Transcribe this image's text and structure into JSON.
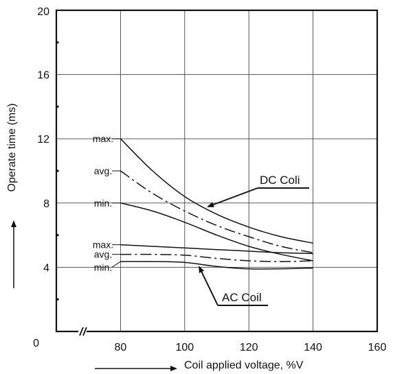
{
  "chart_data": {
    "type": "line",
    "xlabel": "Coil applied voltage, %V",
    "ylabel": "Operate time (ms)",
    "x_ticks": [
      "80",
      "100",
      "120",
      "140",
      "160"
    ],
    "y_ticks": [
      "0",
      "4",
      "8",
      "12",
      "16",
      "20"
    ],
    "xlim": [
      60,
      160
    ],
    "ylim": [
      0,
      20
    ],
    "grid": true,
    "x_axis_break": true,
    "x": [
      80,
      90,
      100,
      110,
      120,
      130,
      140
    ],
    "series": [
      {
        "group": "DC",
        "label": "max.",
        "style": "solid",
        "values": [
          12.0,
          10.0,
          8.4,
          7.3,
          6.5,
          5.9,
          5.5
        ]
      },
      {
        "group": "DC",
        "label": "avg.",
        "style": "dashdot",
        "values": [
          10.0,
          8.6,
          7.5,
          6.6,
          5.9,
          5.3,
          4.9
        ]
      },
      {
        "group": "DC",
        "label": "min.",
        "style": "solid",
        "values": [
          8.0,
          7.5,
          6.8,
          6.0,
          5.3,
          4.8,
          4.4
        ]
      },
      {
        "group": "AC",
        "label": "max.",
        "style": "solid",
        "values": [
          5.4,
          5.3,
          5.2,
          5.1,
          5.0,
          4.9,
          4.85
        ]
      },
      {
        "group": "AC",
        "label": "avg.",
        "style": "dashdot",
        "values": [
          4.8,
          4.8,
          4.75,
          4.55,
          4.4,
          4.35,
          4.4
        ]
      },
      {
        "group": "AC",
        "label": "min.",
        "style": "solid",
        "values": [
          4.35,
          4.35,
          4.3,
          4.05,
          3.9,
          3.9,
          3.95
        ]
      }
    ],
    "annotations": [
      {
        "text": "DC Coli",
        "points_to": "DC"
      },
      {
        "text": "AC Coil",
        "points_to": "AC"
      }
    ]
  }
}
